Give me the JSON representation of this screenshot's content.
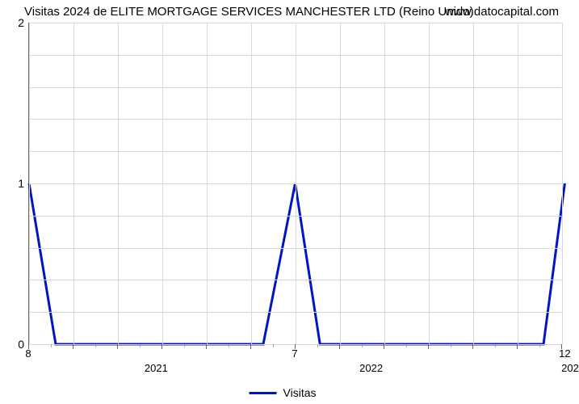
{
  "title": "Visitas 2024 de ELITE MORTGAGE SERVICES MANCHESTER LTD (Reino Unido)",
  "watermark": "www.datocapital.com",
  "legend_label": "Visitas",
  "chart": {
    "type": "line",
    "background_color": "#ffffff",
    "grid_color": "#d9d9d9",
    "axis_color": "#666666",
    "series_color": "#0016c6",
    "line_width": 3,
    "title_fontsize": 15,
    "tick_fontsize": 14,
    "x_range": [
      0,
      30
    ],
    "y_range": [
      0,
      2
    ],
    "y_ticks": [
      {
        "value": 0,
        "label": "0"
      },
      {
        "value": 1,
        "label": "1"
      },
      {
        "value": 2,
        "label": "2"
      }
    ],
    "y_minor_grid": [
      0.2,
      0.4,
      0.6,
      0.8,
      1.2,
      1.4,
      1.6,
      1.8
    ],
    "x_major_grid": [
      0,
      2.5,
      5,
      7.5,
      10,
      12.5,
      15,
      17.5,
      20,
      22.5,
      25,
      27.5,
      30
    ],
    "x_top_labels": [
      {
        "x": 0,
        "label": "8"
      },
      {
        "x": 15,
        "label": "7"
      },
      {
        "x": 30.2,
        "label": "12"
      }
    ],
    "x_bottom_labels": [
      {
        "x": 7.2,
        "label": "2021"
      },
      {
        "x": 19.3,
        "label": "2022"
      },
      {
        "x": 30.5,
        "label": "202"
      }
    ],
    "x_minor_ticks": [
      1.25,
      3.75,
      6.25,
      8.75,
      11.25,
      13.75,
      16.25,
      18.75,
      21.25,
      23.75,
      26.25,
      28.75
    ],
    "series": {
      "x": [
        0,
        1.5,
        13.2,
        15.0,
        16.4,
        29.0,
        30.2
      ],
      "y": [
        1,
        0,
        0,
        1,
        0,
        0,
        1
      ]
    }
  }
}
